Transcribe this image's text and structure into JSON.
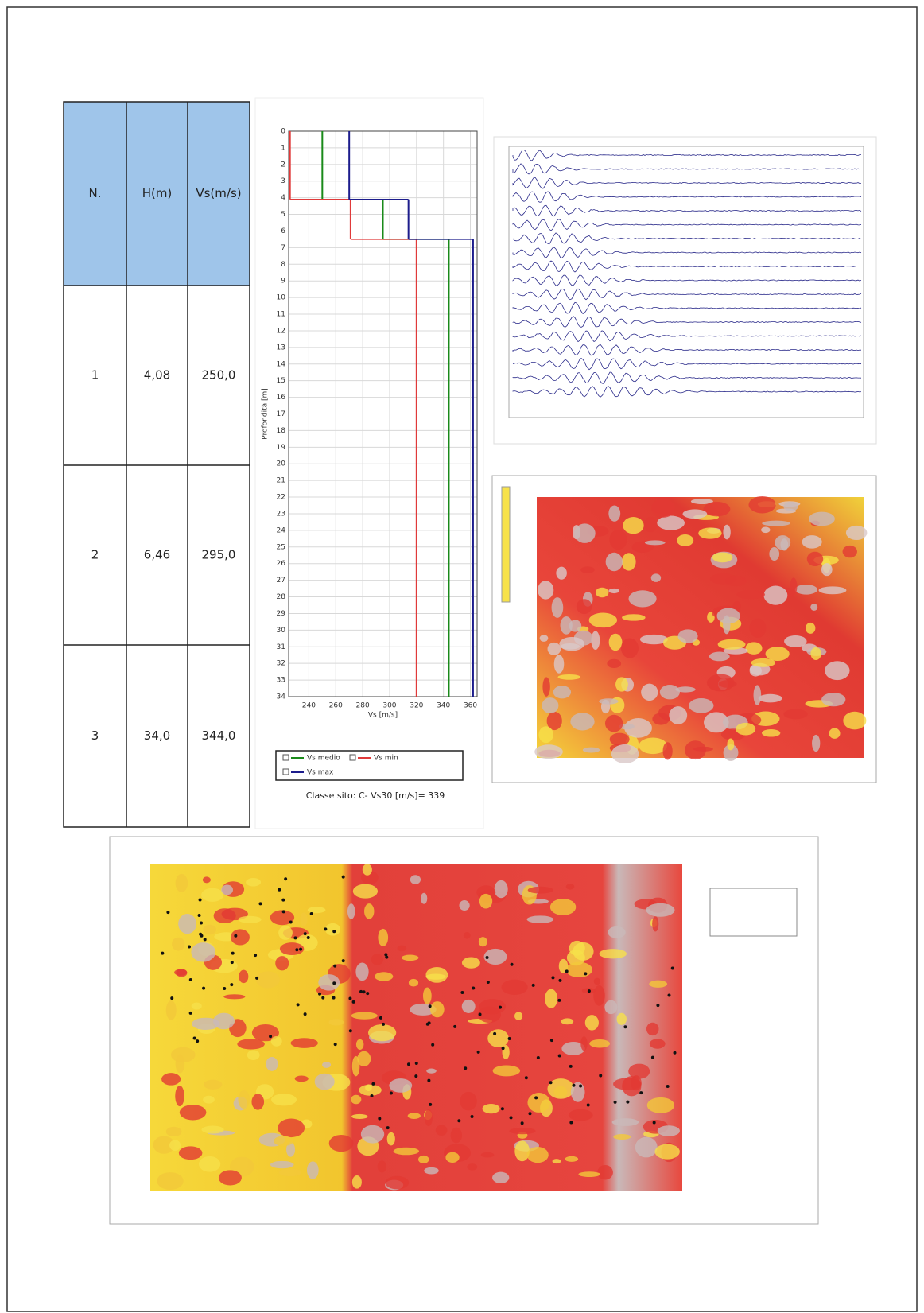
{
  "table": {
    "header": [
      "N.",
      "H(m)",
      "Vs(m/s)"
    ],
    "rows": [
      [
        "1",
        "4,08",
        "250,0"
      ],
      [
        "2",
        "6,46",
        "295,0"
      ],
      [
        "3",
        "34,0",
        "344,0"
      ]
    ]
  },
  "chart_data": {
    "type": "step-profile",
    "x_label": "Vs [m/s]",
    "y_label": "Profondità [m]",
    "depths": [
      4.1,
      6.5,
      34
    ],
    "series": [
      {
        "name": "Vs medio",
        "color": "#1a8a1a",
        "values": [
          250,
          295,
          344
        ]
      },
      {
        "name": "Vs min",
        "color": "#e03a3a",
        "values": [
          226,
          271,
          320
        ]
      },
      {
        "name": "Vs max",
        "color": "#1c1c8c",
        "values": [
          270,
          314,
          362
        ]
      }
    ],
    "xlim": [
      225,
      365
    ],
    "ylim": [
      0,
      34
    ],
    "xticks": [
      240,
      260,
      280,
      300,
      320,
      340,
      360
    ],
    "yticks": [
      0,
      1,
      2,
      3,
      4,
      5,
      6,
      7,
      8,
      9,
      10,
      11,
      12,
      13,
      14,
      15,
      16,
      17,
      18,
      19,
      20,
      21,
      22,
      23,
      24,
      25,
      26,
      27,
      28,
      29,
      30,
      31,
      32,
      33,
      34
    ],
    "grid": true,
    "y_inverted": true
  },
  "caption": "Classe sito: C- Vs30 [m/s]= 339"
}
